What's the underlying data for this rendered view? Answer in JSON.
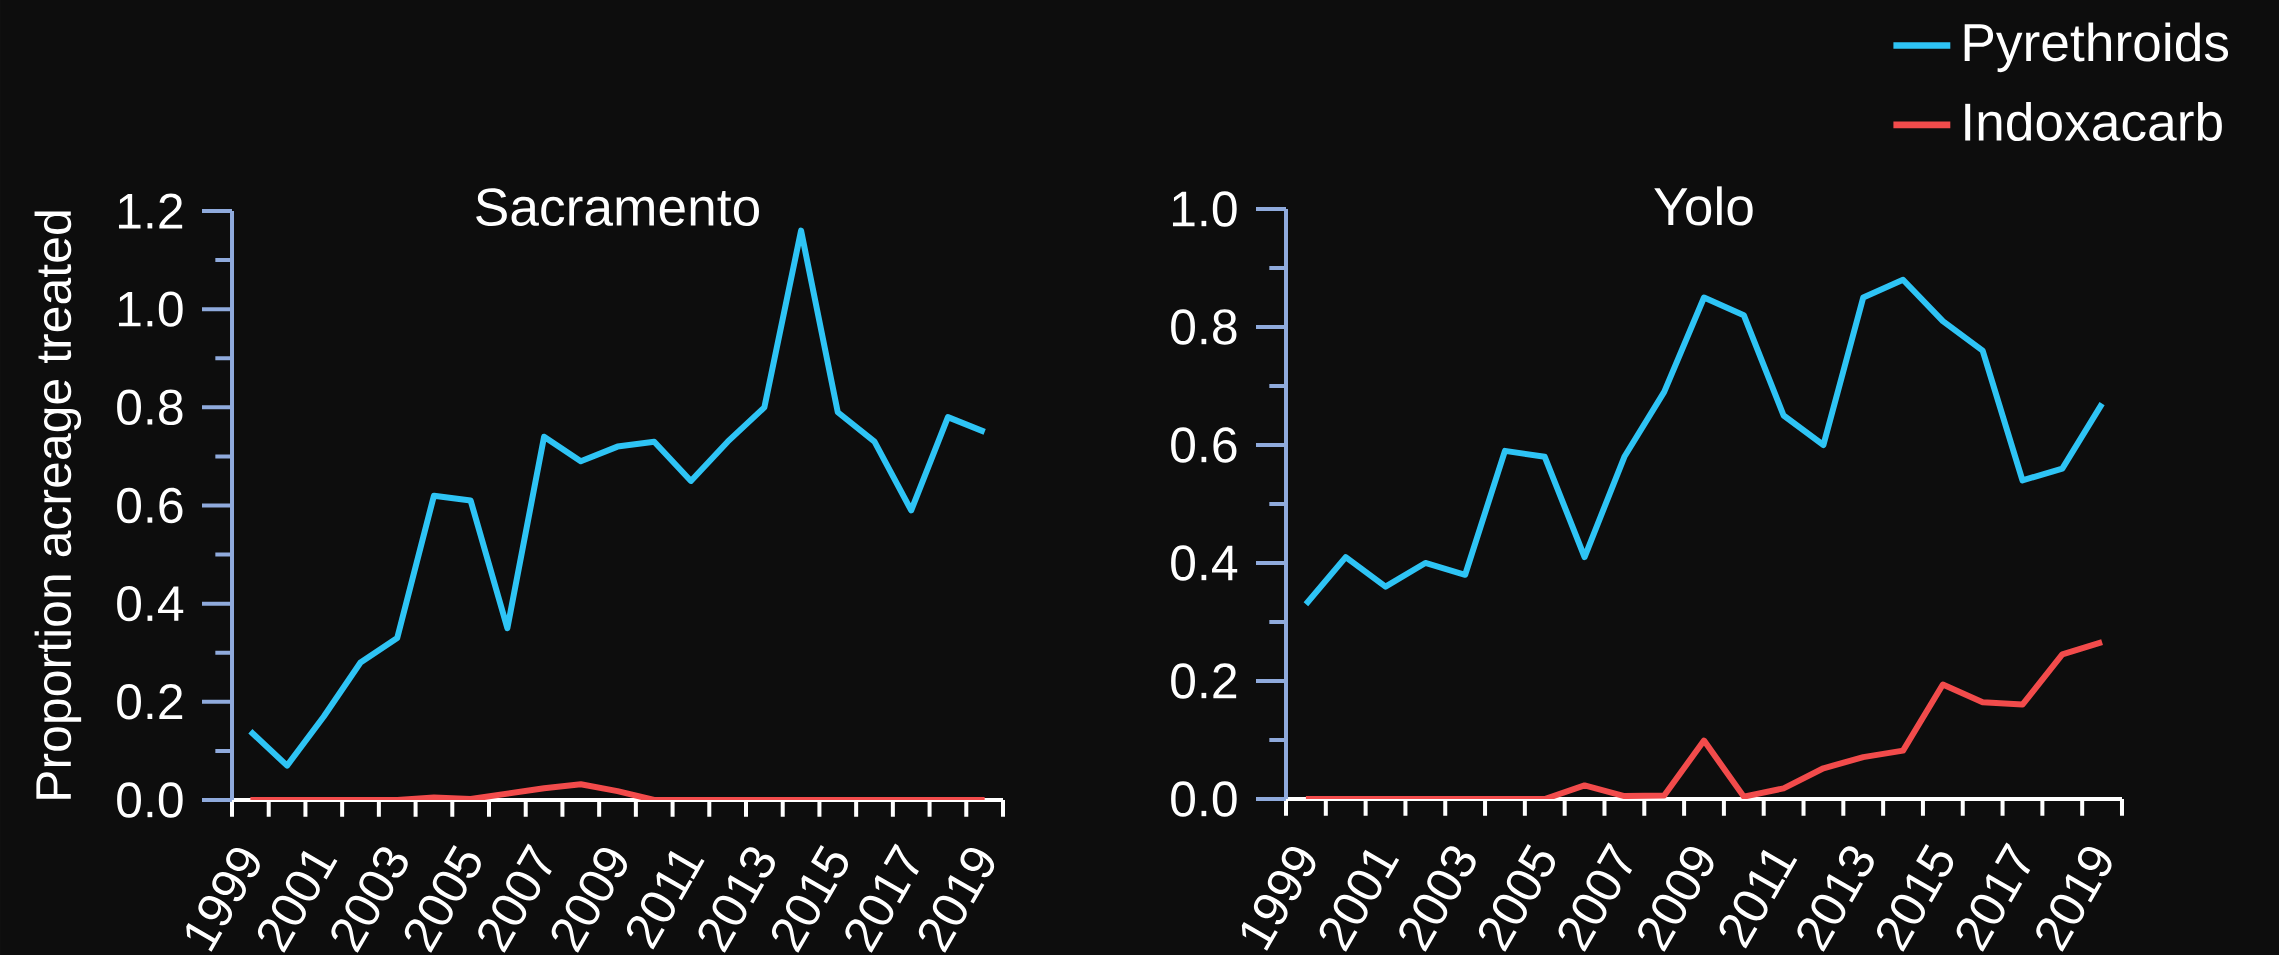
{
  "chart_data": [
    {
      "type": "line",
      "title": "Sacramento",
      "ylabel": "Proportion acreage treated",
      "categories": [
        "1999",
        null,
        "2001",
        null,
        "2003",
        null,
        "2005",
        null,
        "2007",
        null,
        "2009",
        null,
        "2011",
        null,
        "2013",
        null,
        "2015",
        null,
        "2017",
        null,
        "2019"
      ],
      "series": [
        {
          "color": "#2ec4f5",
          "values": [
            0.14,
            0.07,
            0.17,
            0.28,
            0.33,
            0.62,
            0.61,
            0.35,
            0.74,
            0.69,
            0.72,
            0.73,
            0.65,
            0.73,
            0.8,
            1.16,
            0.79,
            0.73,
            0.59,
            0.78,
            0.75
          ]
        },
        {
          "color": "#f24b4b",
          "values": [
            0,
            0,
            0,
            0,
            0,
            0.005,
            0.002,
            0.013,
            0.024,
            0.032,
            0.018,
            0,
            0,
            0,
            0,
            0,
            0,
            0,
            0,
            0,
            0
          ]
        }
      ],
      "ylim": [
        0,
        1.2
      ],
      "yticks": [
        {
          "value": 0,
          "label": "0.0"
        },
        {
          "value": 0.2,
          "label": "0.2"
        },
        {
          "value": 0.4,
          "label": "0.4"
        },
        {
          "value": 0.6,
          "label": "0.6"
        },
        {
          "value": 0.8,
          "label": "0.8"
        },
        {
          "value": 1.0,
          "label": "1.0"
        },
        {
          "value": 1.2,
          "label": "1.2"
        }
      ],
      "grid": false,
      "line_style": "solid",
      "marker": "none"
    },
    {
      "type": "line",
      "title": "Yolo",
      "categories": [
        "1999",
        null,
        "2001",
        null,
        "2003",
        null,
        "2005",
        null,
        "2007",
        null,
        "2009",
        null,
        "2011",
        null,
        "2013",
        null,
        "2015",
        null,
        "2017",
        null,
        "2019"
      ],
      "series": [
        {
          "name": "Pyrethroids",
          "color": "#2ec4f5",
          "values": [
            0.33,
            0.41,
            0.36,
            0.4,
            0.38,
            0.59,
            0.58,
            0.41,
            0.58,
            0.69,
            0.85,
            0.82,
            0.65,
            0.6,
            0.85,
            0.88,
            0.81,
            0.76,
            0.54,
            0.56,
            0.67
          ]
        },
        {
          "name": "Indoxacarb",
          "color": "#f24b4b",
          "values": [
            0,
            0,
            0,
            0,
            0,
            0,
            0,
            0.023,
            0.005,
            0.006,
            0.099,
            0.004,
            0.018,
            0.052,
            0.071,
            0.082,
            0.194,
            0.164,
            0.16,
            0.245,
            0.266
          ]
        }
      ],
      "ylim": [
        0,
        1.0
      ],
      "yticks": [
        {
          "value": 0,
          "label": "0.0"
        },
        {
          "value": 0.2,
          "label": "0.2"
        },
        {
          "value": 0.4,
          "label": "0.4"
        },
        {
          "value": 0.6,
          "label": "0.6"
        },
        {
          "value": 0.8,
          "label": "0.8"
        },
        {
          "value": 1.0,
          "label": "1.0"
        }
      ],
      "grid": false,
      "legend": "top right",
      "line_style": "solid",
      "marker": "none"
    }
  ]
}
